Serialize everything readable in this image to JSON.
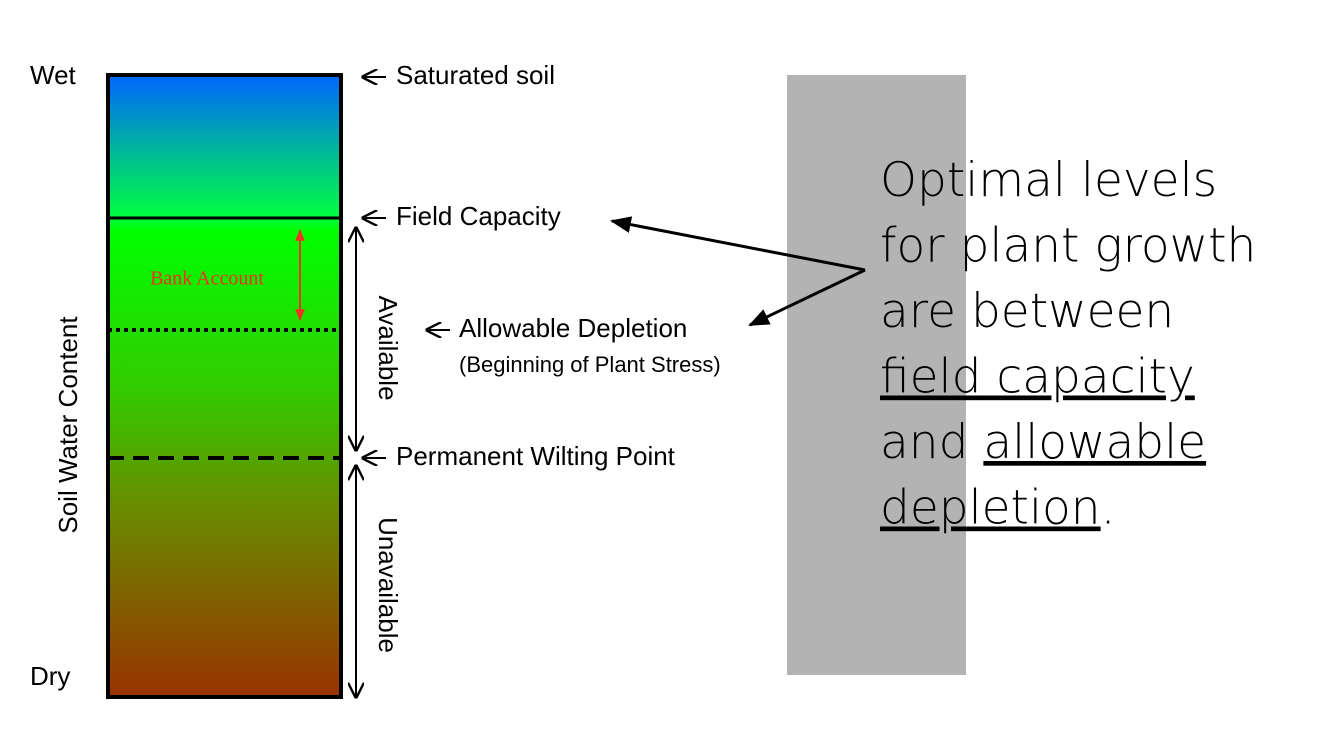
{
  "column": {
    "top": "Wet",
    "bottom": "Dry",
    "axis_label": "Soil Water Content",
    "bank": "Bank Account"
  },
  "levels": {
    "saturated": "Saturated soil",
    "field_capacity": "Field Capacity",
    "allowable": "Allowable Depletion",
    "allowable_note": "(Beginning of Plant Stress)",
    "wilting": "Permanent Wilting Point"
  },
  "zones": {
    "available": "Available",
    "unavailable": "Unavailable"
  },
  "note": {
    "lines": [
      [
        {
          "text": "Optimal levels",
          "underline": false
        }
      ],
      [
        {
          "text": "for plant growth",
          "underline": false
        }
      ],
      [
        {
          "text": "are between",
          "underline": false
        }
      ],
      [
        {
          "text": "field capacity",
          "underline": true
        }
      ],
      [
        {
          "text": "and ",
          "underline": false
        },
        {
          "text": "allowable",
          "underline": true
        }
      ],
      [
        {
          "text": "depletion",
          "underline": true
        },
        {
          "text": ".",
          "underline": false
        }
      ]
    ]
  }
}
